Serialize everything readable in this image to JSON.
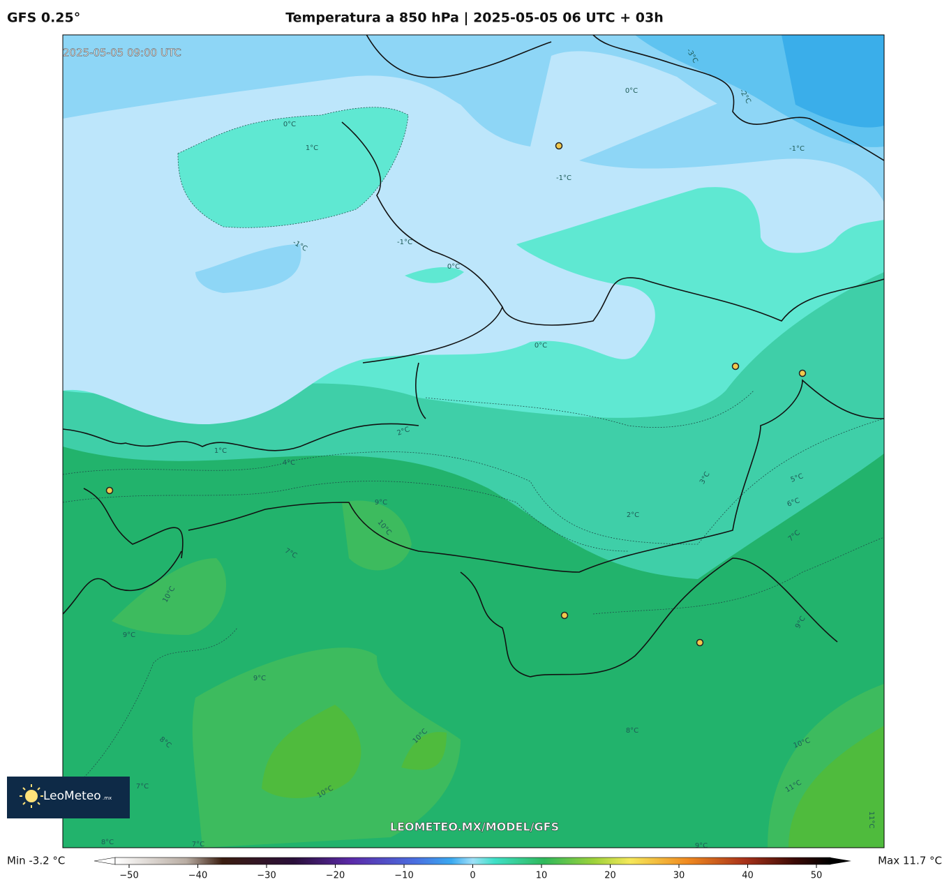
{
  "header": {
    "model": "GFS 0.25°",
    "title": "Temperatura a 850 hPa | 2025-05-05 06 UTC + 03h"
  },
  "map": {
    "valid_time": "2025-05-05 09:00 UTC",
    "watermark": "LEOMETEO.MX/MODEL/GFS",
    "contour_labels": [
      "0°C",
      "1°C",
      "-1°C",
      "-1°C",
      "0°C",
      "0°C",
      "-1°C",
      "-1°C",
      "-2°C",
      "-3°C",
      "0°C",
      "2°C",
      "1°C",
      "4°C",
      "3°C",
      "2°C",
      "5°C",
      "6°C",
      "7°C",
      "9°C",
      "10°C",
      "7°C",
      "10°C",
      "9°C",
      "9°C",
      "9°C",
      "8°C",
      "10°C",
      "10°C",
      "10°C",
      "11°C",
      "8°C",
      "7°C",
      "8°C",
      "7°C",
      "9°C",
      "11°C"
    ]
  },
  "logo": {
    "name": "LeoMeteo",
    "suffix": ".mx"
  },
  "colorbar": {
    "min_label": "Min -3.2 °C",
    "max_label": "Max 11.7 °C",
    "ticks": [
      {
        "value": -50,
        "label": "−50"
      },
      {
        "value": -40,
        "label": "−40"
      },
      {
        "value": -30,
        "label": "−30"
      },
      {
        "value": -20,
        "label": "−20"
      },
      {
        "value": -10,
        "label": "−10"
      },
      0,
      10,
      20,
      30,
      40,
      50
    ]
  }
}
